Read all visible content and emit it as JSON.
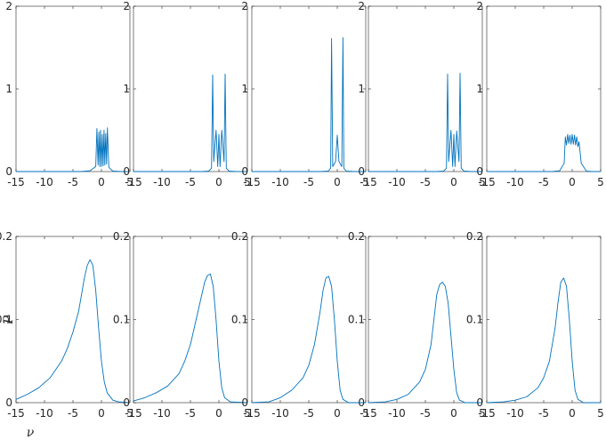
{
  "chart_data": [
    {
      "type": "line",
      "row": "top",
      "title": "",
      "xlabel": "",
      "ylabel": "",
      "xlim": [
        -15,
        5
      ],
      "ylim": [
        0,
        2
      ],
      "xticks": [
        "-15",
        "-10",
        "-5",
        "0",
        "5"
      ],
      "yticks": [
        "0",
        "1",
        "2"
      ],
      "series": [
        {
          "color": "#0072BD",
          "x": [
            -15,
            -3.5,
            -2,
            -1,
            -0.8,
            -0.6,
            -0.45,
            -0.3,
            -0.15,
            0,
            0.15,
            0.3,
            0.45,
            0.6,
            0.75,
            0.9,
            1.05,
            1.3,
            2,
            3.5,
            5
          ],
          "y": [
            0,
            0,
            0.01,
            0.06,
            0.52,
            0.08,
            0.48,
            0.06,
            0.5,
            0.06,
            0.45,
            0.07,
            0.5,
            0.08,
            0.46,
            0.09,
            0.53,
            0.05,
            0.005,
            0,
            0
          ]
        }
      ]
    },
    {
      "type": "line",
      "row": "top",
      "title": "",
      "xlabel": "",
      "ylabel": "",
      "xlim": [
        -15,
        5
      ],
      "ylim": [
        0,
        2
      ],
      "xticks": [
        "-15",
        "-10",
        "-5",
        "0",
        "5"
      ],
      "yticks": [
        "0",
        "1",
        "2"
      ],
      "series": [
        {
          "color": "#0072BD",
          "x": [
            -15,
            -3,
            -1.8,
            -1.3,
            -1.1,
            -0.9,
            -0.5,
            -0.2,
            0,
            0.2,
            0.5,
            0.9,
            1.1,
            1.3,
            1.8,
            3,
            5
          ],
          "y": [
            0,
            0,
            0.005,
            0.04,
            1.17,
            0.12,
            0.5,
            0.06,
            0.45,
            0.06,
            0.5,
            0.12,
            1.18,
            0.04,
            0.005,
            0,
            0
          ]
        }
      ]
    },
    {
      "type": "line",
      "row": "top",
      "title": "",
      "xlabel": "",
      "ylabel": "",
      "xlim": [
        -15,
        5
      ],
      "ylim": [
        0,
        2
      ],
      "xticks": [
        "-15",
        "-10",
        "-5",
        "0",
        "5"
      ],
      "yticks": [
        "0",
        "1",
        "2"
      ],
      "series": [
        {
          "color": "#0072BD",
          "x": [
            -15,
            -3,
            -1.6,
            -1.15,
            -1.0,
            -0.8,
            -0.3,
            0,
            0.3,
            0.8,
            1.0,
            1.15,
            1.6,
            3,
            5
          ],
          "y": [
            0,
            0,
            0.005,
            0.04,
            1.61,
            0.06,
            0.12,
            0.44,
            0.12,
            0.06,
            1.62,
            0.04,
            0.005,
            0,
            0
          ]
        }
      ]
    },
    {
      "type": "line",
      "row": "top",
      "title": "",
      "xlabel": "",
      "ylabel": "",
      "xlim": [
        -15,
        5
      ],
      "ylim": [
        0,
        2
      ],
      "xticks": [
        "-15",
        "-10",
        "-5",
        "0",
        "5"
      ],
      "yticks": [
        "0",
        "1",
        "2"
      ],
      "series": [
        {
          "color": "#0072BD",
          "x": [
            -15,
            -3,
            -1.8,
            -1.3,
            -1.1,
            -0.9,
            -0.5,
            -0.2,
            0,
            0.2,
            0.5,
            0.9,
            1.1,
            1.3,
            1.8,
            3,
            5
          ],
          "y": [
            0,
            0,
            0.005,
            0.04,
            1.18,
            0.12,
            0.5,
            0.06,
            0.45,
            0.06,
            0.49,
            0.12,
            1.19,
            0.04,
            0.005,
            0,
            0
          ]
        }
      ]
    },
    {
      "type": "line",
      "row": "top",
      "title": "",
      "xlabel": "",
      "ylabel": "",
      "xlim": [
        -15,
        5
      ],
      "ylim": [
        0,
        2
      ],
      "xticks": [
        "-15",
        "-10",
        "-5",
        "0",
        "5"
      ],
      "yticks": [
        "0",
        "1",
        "2"
      ],
      "series": [
        {
          "color": "#0072BD",
          "x": [
            -15,
            -3.5,
            -2.2,
            -1.4,
            -1.2,
            -1.0,
            -0.8,
            -0.6,
            -0.4,
            -0.2,
            0,
            0.2,
            0.4,
            0.6,
            0.8,
            1.0,
            1.2,
            1.6,
            2.5,
            3.5,
            5
          ],
          "y": [
            0,
            0,
            0.01,
            0.1,
            0.42,
            0.32,
            0.45,
            0.34,
            0.44,
            0.33,
            0.45,
            0.33,
            0.44,
            0.32,
            0.42,
            0.3,
            0.36,
            0.1,
            0.005,
            0,
            0
          ]
        }
      ]
    },
    {
      "type": "line",
      "row": "bottom",
      "title": "",
      "xlabel": "ν",
      "ylabel": "P",
      "xlim": [
        -15,
        5
      ],
      "ylim": [
        0,
        0.2
      ],
      "xticks": [
        "-15",
        "-10",
        "-5",
        "0",
        "5"
      ],
      "yticks": [
        "0",
        "0.1",
        "0.2"
      ],
      "series": [
        {
          "color": "#0072BD",
          "x": [
            -15,
            -13,
            -11,
            -9,
            -7,
            -6,
            -5,
            -4,
            -3.5,
            -3,
            -2.5,
            -2,
            -1.5,
            -1,
            -0.5,
            0,
            0.5,
            1,
            2,
            3,
            5
          ],
          "y": [
            0.004,
            0.01,
            0.018,
            0.03,
            0.05,
            0.065,
            0.085,
            0.11,
            0.13,
            0.15,
            0.165,
            0.172,
            0.165,
            0.135,
            0.09,
            0.05,
            0.025,
            0.012,
            0.003,
            0.001,
            0
          ]
        }
      ]
    },
    {
      "type": "line",
      "row": "bottom",
      "title": "",
      "xlabel": "",
      "ylabel": "",
      "xlim": [
        -15,
        5
      ],
      "ylim": [
        0,
        0.2
      ],
      "xticks": [
        "-15",
        "-10",
        "-5",
        "0",
        "5"
      ],
      "yticks": [
        "0",
        "0.1",
        "0.2"
      ],
      "series": [
        {
          "color": "#0072BD",
          "x": [
            -15,
            -13,
            -11,
            -9,
            -7,
            -6,
            -5,
            -4,
            -3,
            -2.5,
            -2,
            -1.5,
            -1,
            -0.5,
            0,
            0.5,
            1,
            2,
            5
          ],
          "y": [
            0.002,
            0.006,
            0.012,
            0.02,
            0.035,
            0.05,
            0.07,
            0.1,
            0.13,
            0.145,
            0.153,
            0.155,
            0.14,
            0.1,
            0.05,
            0.018,
            0.006,
            0.001,
            0
          ]
        }
      ]
    },
    {
      "type": "line",
      "row": "bottom",
      "title": "",
      "xlabel": "",
      "ylabel": "",
      "xlim": [
        -15,
        5
      ],
      "ylim": [
        0,
        0.2
      ],
      "xticks": [
        "-15",
        "-10",
        "-5",
        "0",
        "5"
      ],
      "yticks": [
        "0",
        "0.1",
        "0.2"
      ],
      "series": [
        {
          "color": "#0072BD",
          "x": [
            -15,
            -12,
            -10,
            -8,
            -6,
            -5,
            -4,
            -3,
            -2.5,
            -2,
            -1.5,
            -1,
            -0.5,
            0,
            0.5,
            1,
            2,
            5
          ],
          "y": [
            0,
            0.001,
            0.006,
            0.015,
            0.03,
            0.045,
            0.07,
            0.11,
            0.135,
            0.15,
            0.152,
            0.14,
            0.1,
            0.05,
            0.015,
            0.004,
            0,
            0
          ]
        }
      ]
    },
    {
      "type": "line",
      "row": "bottom",
      "title": "",
      "xlabel": "",
      "ylabel": "",
      "xlim": [
        -15,
        5
      ],
      "ylim": [
        0,
        0.2
      ],
      "xticks": [
        "-15",
        "-10",
        "-5",
        "0",
        "5"
      ],
      "yticks": [
        "0",
        "0.1",
        "0.2"
      ],
      "series": [
        {
          "color": "#0072BD",
          "x": [
            -15,
            -12,
            -10,
            -8,
            -6,
            -5,
            -4,
            -3.5,
            -3,
            -2.5,
            -2,
            -1.5,
            -1,
            -0.5,
            0,
            0.5,
            1,
            2,
            5
          ],
          "y": [
            0,
            0.001,
            0.004,
            0.01,
            0.025,
            0.04,
            0.07,
            0.1,
            0.13,
            0.142,
            0.145,
            0.14,
            0.12,
            0.08,
            0.04,
            0.012,
            0.003,
            0,
            0
          ]
        }
      ]
    },
    {
      "type": "line",
      "row": "bottom",
      "title": "",
      "xlabel": "",
      "ylabel": "",
      "xlim": [
        -15,
        5
      ],
      "ylim": [
        0,
        0.2
      ],
      "xticks": [
        "-15",
        "-10",
        "-5",
        "0",
        "5"
      ],
      "yticks": [
        "0",
        "0.1",
        "0.2"
      ],
      "series": [
        {
          "color": "#0072BD",
          "x": [
            -15,
            -12,
            -10,
            -8,
            -6,
            -5,
            -4,
            -3,
            -2.5,
            -2,
            -1.5,
            -1,
            -0.5,
            0,
            0.5,
            1,
            2,
            5
          ],
          "y": [
            0,
            0.001,
            0.003,
            0.007,
            0.018,
            0.03,
            0.05,
            0.09,
            0.12,
            0.145,
            0.15,
            0.14,
            0.1,
            0.05,
            0.015,
            0.004,
            0,
            0
          ]
        }
      ]
    }
  ]
}
